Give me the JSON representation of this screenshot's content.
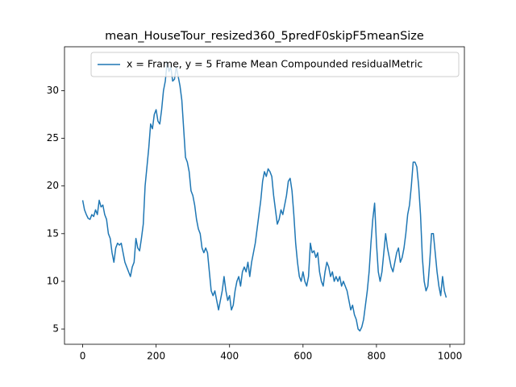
{
  "chart_data": {
    "type": "line",
    "title": "mean_HouseTour_resized360_5predF0skipF5meanSize",
    "x": [
      0,
      5,
      10,
      15,
      20,
      25,
      30,
      35,
      40,
      45,
      50,
      55,
      60,
      65,
      70,
      75,
      80,
      85,
      90,
      95,
      100,
      105,
      110,
      115,
      120,
      125,
      130,
      135,
      140,
      145,
      150,
      155,
      160,
      165,
      170,
      175,
      180,
      185,
      190,
      195,
      200,
      205,
      210,
      215,
      220,
      225,
      230,
      235,
      240,
      245,
      250,
      255,
      260,
      265,
      270,
      275,
      280,
      285,
      290,
      295,
      300,
      305,
      310,
      315,
      320,
      325,
      330,
      335,
      340,
      345,
      350,
      355,
      360,
      365,
      370,
      375,
      380,
      385,
      390,
      395,
      400,
      405,
      410,
      415,
      420,
      425,
      430,
      435,
      440,
      445,
      450,
      455,
      460,
      465,
      470,
      475,
      480,
      485,
      490,
      495,
      500,
      505,
      510,
      515,
      520,
      525,
      530,
      535,
      540,
      545,
      550,
      555,
      560,
      565,
      570,
      575,
      580,
      585,
      590,
      595,
      600,
      605,
      610,
      615,
      620,
      625,
      630,
      635,
      640,
      645,
      650,
      655,
      660,
      665,
      670,
      675,
      680,
      685,
      690,
      695,
      700,
      705,
      710,
      715,
      720,
      725,
      730,
      735,
      740,
      745,
      750,
      755,
      760,
      765,
      770,
      775,
      780,
      785,
      790,
      795,
      800,
      805,
      810,
      815,
      820,
      825,
      830,
      835,
      840,
      845,
      850,
      855,
      860,
      865,
      870,
      875,
      880,
      885,
      890,
      895,
      900,
      905,
      910,
      915,
      920,
      925,
      930,
      935,
      940,
      945,
      950,
      955,
      960,
      965,
      970,
      975,
      980,
      985,
      990
    ],
    "series": [
      {
        "name": "x = Frame, y = 5 Frame Mean Compounded residualMetric",
        "color": "#1f77b4",
        "values": [
          18.5,
          17.5,
          17,
          16.6,
          16.5,
          17,
          16.8,
          17.5,
          17,
          18.5,
          17.8,
          18,
          17,
          16.5,
          15,
          14.5,
          13,
          12,
          13.5,
          14,
          13.8,
          14,
          13,
          12,
          11.5,
          11,
          10.5,
          11.5,
          12,
          14.5,
          13.5,
          13.2,
          14.5,
          16,
          20,
          22,
          24,
          26.5,
          26,
          27.5,
          28,
          26.8,
          26.5,
          28,
          30,
          31,
          33,
          32,
          32.5,
          31,
          31.2,
          32.5,
          31.5,
          30.5,
          29,
          26,
          23,
          22.5,
          21.5,
          19.5,
          19,
          18,
          16.5,
          15.5,
          15,
          13.5,
          13,
          13.5,
          13,
          11,
          9,
          8.5,
          9,
          8,
          7,
          8,
          9,
          10.5,
          9,
          8,
          8.5,
          7,
          7.5,
          9,
          10,
          10.5,
          9.5,
          11,
          11.5,
          11,
          12,
          10.5,
          12,
          13,
          14,
          15.5,
          17,
          18.5,
          20.5,
          21.5,
          21,
          21.8,
          21.5,
          21,
          19,
          17.5,
          16,
          16.5,
          17.5,
          17,
          18,
          19,
          20.5,
          20.8,
          19.5,
          17,
          14,
          12,
          10.5,
          10,
          11,
          10,
          9.5,
          10.5,
          14,
          13,
          13.2,
          12.5,
          13,
          11,
          10,
          9.5,
          11,
          12,
          11.5,
          10.5,
          11,
          10,
          10.5,
          10,
          10.5,
          9.5,
          10,
          9.5,
          9,
          8,
          7,
          7.5,
          6.5,
          6,
          5,
          4.8,
          5.2,
          6,
          7.5,
          9,
          11,
          14,
          16.5,
          18.2,
          14,
          11,
          10,
          11,
          13,
          15,
          13.5,
          12.5,
          11.5,
          11,
          12,
          13,
          13.5,
          12,
          12.5,
          13.5,
          15,
          17,
          18,
          20,
          22.5,
          22.5,
          22,
          20,
          17,
          12.5,
          10,
          9,
          9.5,
          12,
          15,
          15,
          13,
          11,
          9.5,
          8.5,
          10.5,
          9,
          8.3
        ]
      }
    ],
    "xlim": [
      -49.5,
      1039.5
    ],
    "ylim": [
      3.4,
      34.6
    ],
    "xticks": [
      0,
      200,
      400,
      600,
      800,
      1000
    ],
    "yticks": [
      5,
      10,
      15,
      20,
      25,
      30
    ],
    "legend": "upper right"
  }
}
